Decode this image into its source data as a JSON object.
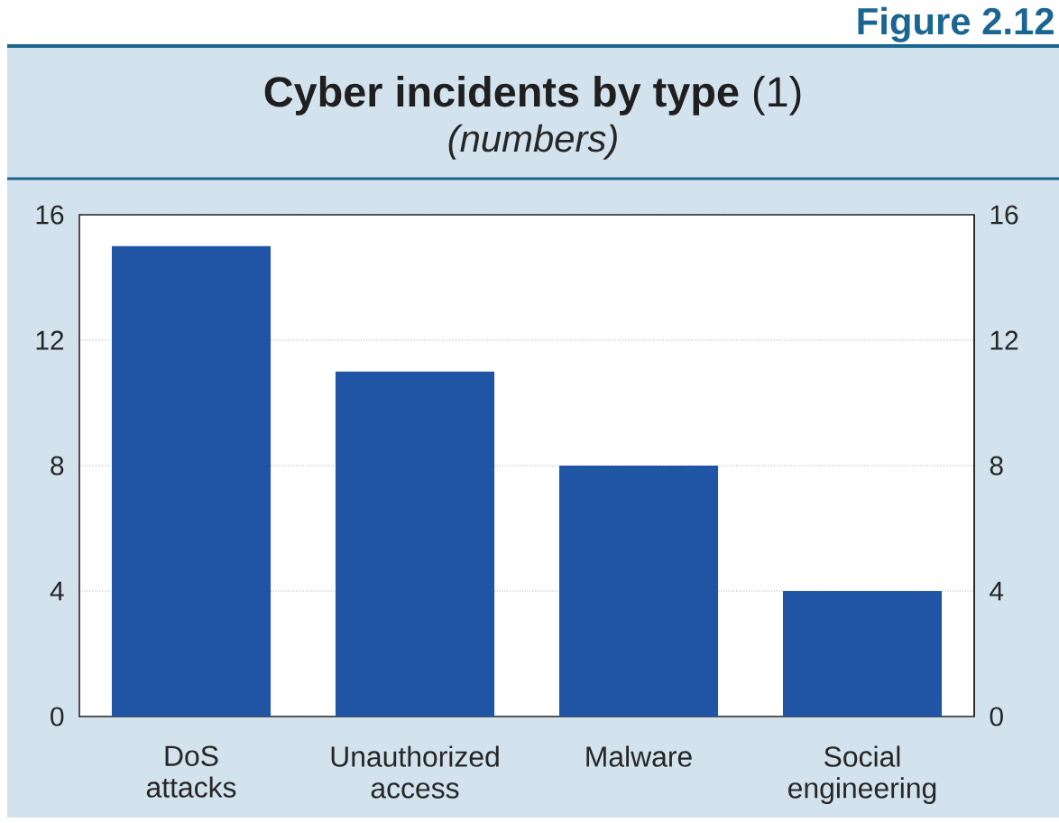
{
  "chart_data": {
    "type": "bar",
    "title": "**Cyber incidents by type** (1)",
    "subtitle": "(numbers)",
    "annotations": [
      "Figure 2.12"
    ],
    "categories": [
      "DoS attacks",
      "Unauthorized access",
      "Malware",
      "Social engineering"
    ],
    "values": [
      15,
      11,
      8,
      4
    ],
    "color": "#1f55a4",
    "ylim": [
      0,
      16
    ],
    "yticks": [
      0,
      4,
      8,
      12,
      16
    ],
    "y2lim": [
      0,
      16
    ],
    "y2ticks": [
      0,
      4,
      8,
      12,
      16
    ],
    "grid": "y"
  }
}
